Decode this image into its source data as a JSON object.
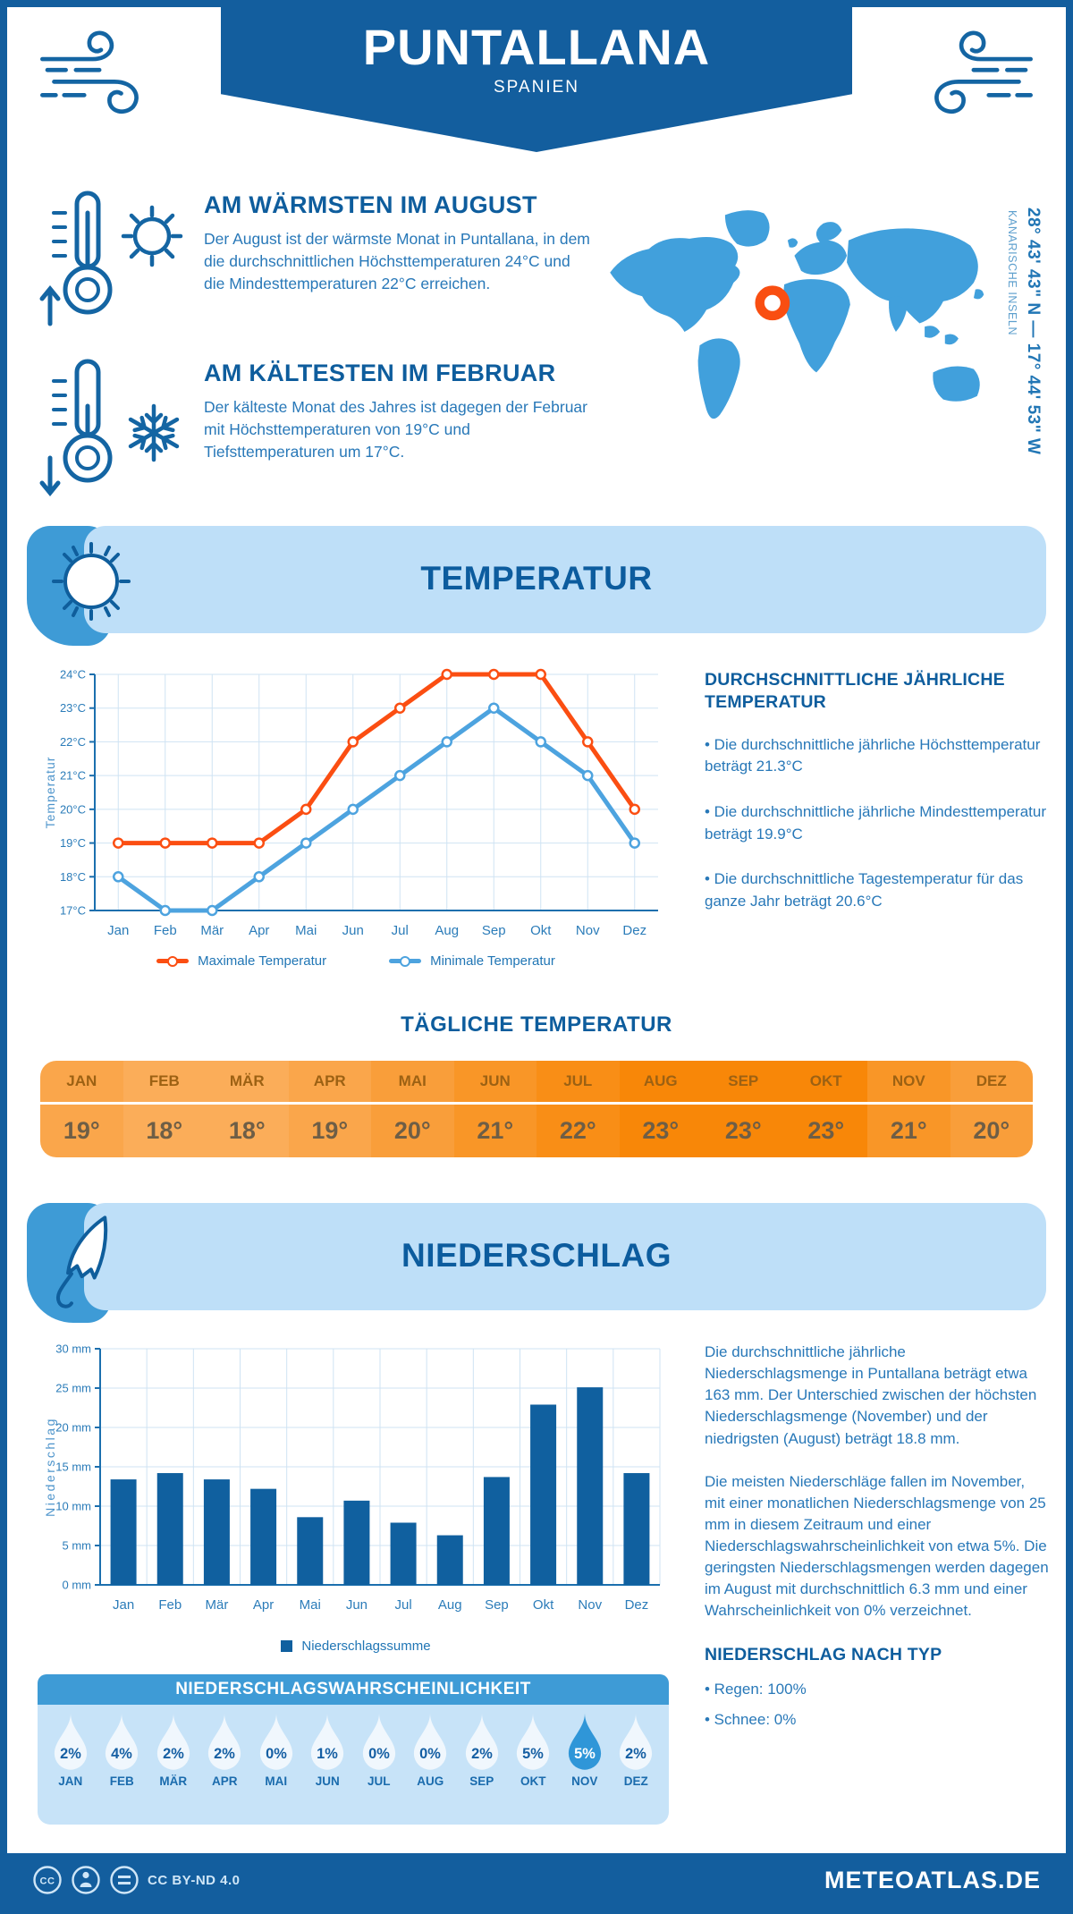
{
  "header": {
    "title": "PUNTALLANA",
    "subtitle": "SPANIEN"
  },
  "warmest": {
    "title": "AM WÄRMSTEN IM AUGUST",
    "text": "Der August ist der wärmste Monat in Puntallana, in dem die durchschnittlichen Höchsttemperaturen 24°C und die Mindesttemperaturen 22°C erreichen."
  },
  "coldest": {
    "title": "AM KÄLTESTEN IM FEBRUAR",
    "text": "Der kälteste Monat des Jahres ist dagegen der Februar mit Höchsttemperaturen von 19°C und Tiefsttemperaturen um 17°C."
  },
  "map": {
    "coordinates": "28° 43' 43\" N — 17° 44' 53\" W",
    "region": "KANARISCHE INSELN",
    "land_color": "#41A0DC",
    "marker_color": "#F94E11"
  },
  "temperature_section": {
    "banner": "TEMPERATUR",
    "annual": {
      "title": "DURCHSCHNITTLICHE JÄHRLICHE TEMPERATUR",
      "bullets": [
        "• Die durchschnittliche jährliche Höchsttemperatur beträgt 21.3°C",
        "• Die durchschnittliche jährliche Mindesttemperatur beträgt 19.9°C",
        "• Die durchschnittliche Tagestemperatur für das ganze Jahr beträgt 20.6°C"
      ]
    },
    "daily": {
      "title": "TÄGLICHE TEMPERATUR",
      "months": [
        "JAN",
        "FEB",
        "MÄR",
        "APR",
        "MAI",
        "JUN",
        "JUL",
        "AUG",
        "SEP",
        "OKT",
        "NOV",
        "DEZ"
      ],
      "values": [
        "19°",
        "18°",
        "18°",
        "19°",
        "20°",
        "21°",
        "22°",
        "23°",
        "23°",
        "23°",
        "21°",
        "20°"
      ],
      "cell_colors": [
        "#FAA64B",
        "#FBAD59",
        "#FBAD59",
        "#FAA64B",
        "#F99E3A",
        "#F99627",
        "#F98E16",
        "#F88708",
        "#F88708",
        "#F88708",
        "#F99627",
        "#F99E3A"
      ]
    }
  },
  "precipitation_section": {
    "banner": "NIEDERSCHLAG",
    "paragraphs": [
      "Die durchschnittliche jährliche Niederschlagsmenge in Puntallana beträgt etwa 163 mm. Der Unterschied zwischen der höchsten Niederschlagsmenge (November) und der niedrigsten (August) beträgt 18.8 mm.",
      "Die meisten Niederschläge fallen im November, mit einer monatlichen Niederschlagsmenge von 25 mm in diesem Zeitraum und einer Niederschlagswahrscheinlichkeit von etwa 5%. Die geringsten Niederschlagsmengen werden dagegen im August mit durchschnittlich 6.3 mm und einer Wahrscheinlichkeit von 0% verzeichnet."
    ],
    "by_type": {
      "title": "NIEDERSCHLAG NACH TYP",
      "bullets": [
        "• Regen: 100%",
        "• Schnee: 0%"
      ]
    },
    "probability": {
      "title": "NIEDERSCHLAGSWAHRSCHEINLICHKEIT",
      "months": [
        "JAN",
        "FEB",
        "MÄR",
        "APR",
        "MAI",
        "JUN",
        "JUL",
        "AUG",
        "SEP",
        "OKT",
        "NOV",
        "DEZ"
      ],
      "values": [
        "2%",
        "4%",
        "2%",
        "2%",
        "0%",
        "1%",
        "0%",
        "0%",
        "2%",
        "5%",
        "5%",
        "2%"
      ],
      "highlight_index": 10,
      "drop_color": "#F0F7FD",
      "drop_highlight_color": "#2F96D8",
      "drop_text_color": "#155FA3"
    }
  },
  "chart_data": [
    {
      "type": "line",
      "title": "",
      "x": [
        "Jan",
        "Feb",
        "Mär",
        "Apr",
        "Mai",
        "Jun",
        "Jul",
        "Aug",
        "Sep",
        "Okt",
        "Nov",
        "Dez"
      ],
      "ylabel": "Temperatur",
      "ylim": [
        17,
        24
      ],
      "ytick_step": 1,
      "ytick_suffix": "°C",
      "grid": true,
      "legend_position": "bottom",
      "series": [
        {
          "name": "Maximale Temperatur",
          "color": "#FB4E12",
          "values": [
            19,
            19,
            19,
            19,
            20,
            22,
            23,
            24,
            24,
            24,
            22,
            20
          ]
        },
        {
          "name": "Minimale Temperatur",
          "color": "#4DA3DF",
          "values": [
            18,
            17,
            17,
            18,
            19,
            20,
            21,
            22,
            23,
            22,
            21,
            19
          ]
        }
      ]
    },
    {
      "type": "bar",
      "title": "",
      "x": [
        "Jan",
        "Feb",
        "Mär",
        "Apr",
        "Mai",
        "Jun",
        "Jul",
        "Aug",
        "Sep",
        "Okt",
        "Nov",
        "Dez"
      ],
      "ylabel": "Niederschlag",
      "ylim": [
        0,
        30
      ],
      "ytick_step": 5,
      "ytick_suffix": " mm",
      "grid": true,
      "legend_position": "bottom",
      "series": [
        {
          "name": "Niederschlagssumme",
          "color": "#10609F",
          "values": [
            13.4,
            14.2,
            13.4,
            12.2,
            8.6,
            10.7,
            7.9,
            6.3,
            13.7,
            22.9,
            25.1,
            14.2
          ]
        }
      ]
    }
  ],
  "footer": {
    "license": "CC BY-ND 4.0",
    "site": "METEOATLAS.DE"
  }
}
